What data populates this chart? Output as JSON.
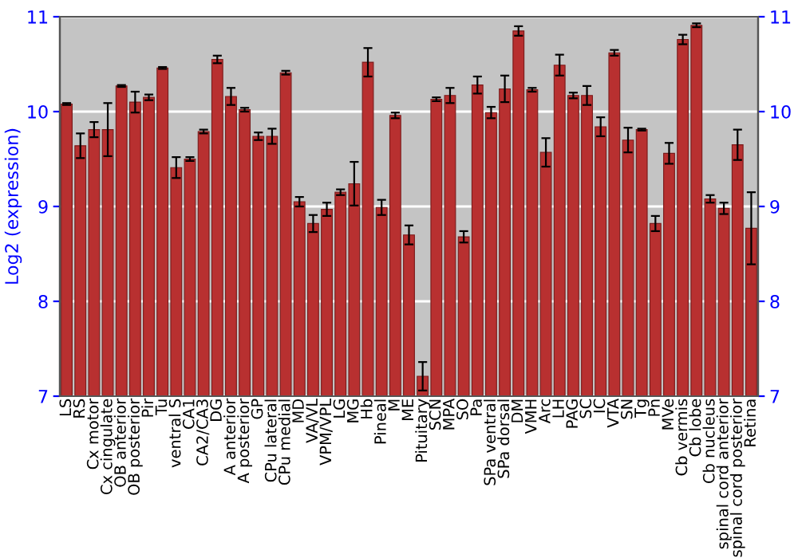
{
  "chart_data": {
    "type": "bar",
    "ylabel": "Log2 (expression)",
    "categories": [
      "LS",
      "RS",
      "Cx motor",
      "Cx cingulate",
      "OB anterior",
      "OB posterior",
      "Pir",
      "Tu",
      "ventral S",
      "CA1",
      "CA2/CA3",
      "DG",
      "A anterior",
      "A posterior",
      "GP",
      "CPu lateral",
      "CPu medial",
      "MD",
      "VA/VL",
      "VPM/VPL",
      "LG",
      "MG",
      "Hb",
      "Pineal",
      "M",
      "ME",
      "Pituitary",
      "SCN",
      "MPA",
      "SO",
      "Pa",
      "SPa ventral",
      "SPa dorsal",
      "DM",
      "VMH",
      "Arc",
      "LH",
      "PAG",
      "SC",
      "IC",
      "VTA",
      "SN",
      "Tg",
      "Pn",
      "MVe",
      "Cb vermis",
      "Cb lobe",
      "Cb nucleus",
      "spinal cord anterior",
      "spinal cord posterior",
      "Retina"
    ],
    "values": [
      10.08,
      9.64,
      9.81,
      9.81,
      10.27,
      10.1,
      10.15,
      10.46,
      9.41,
      9.5,
      9.79,
      10.55,
      10.16,
      10.02,
      9.74,
      9.74,
      10.41,
      9.05,
      8.82,
      8.97,
      9.15,
      9.24,
      10.52,
      8.99,
      9.96,
      8.7,
      7.21,
      10.13,
      10.17,
      8.68,
      10.28,
      9.99,
      10.24,
      10.85,
      10.23,
      9.57,
      10.49,
      10.17,
      10.17,
      9.84,
      10.62,
      9.7,
      9.81,
      8.82,
      9.56,
      10.76,
      10.91,
      9.08,
      8.98,
      9.65,
      8.77
    ],
    "errors": [
      0.01,
      0.13,
      0.08,
      0.28,
      0.01,
      0.11,
      0.03,
      0.01,
      0.11,
      0.02,
      0.02,
      0.04,
      0.09,
      0.02,
      0.04,
      0.08,
      0.02,
      0.05,
      0.09,
      0.07,
      0.03,
      0.23,
      0.15,
      0.08,
      0.03,
      0.1,
      0.15,
      0.02,
      0.08,
      0.06,
      0.09,
      0.06,
      0.14,
      0.05,
      0.02,
      0.15,
      0.11,
      0.03,
      0.1,
      0.1,
      0.03,
      0.13,
      0.01,
      0.08,
      0.11,
      0.05,
      0.02,
      0.04,
      0.06,
      0.16,
      0.38
    ],
    "color": "#b83030",
    "ylim": [
      7,
      11
    ],
    "yticks": [
      7,
      8,
      9,
      10,
      11
    ],
    "y2lim": [
      7,
      11
    ],
    "y2ticks": [
      7,
      8,
      9,
      10,
      11
    ],
    "grid": "y"
  }
}
